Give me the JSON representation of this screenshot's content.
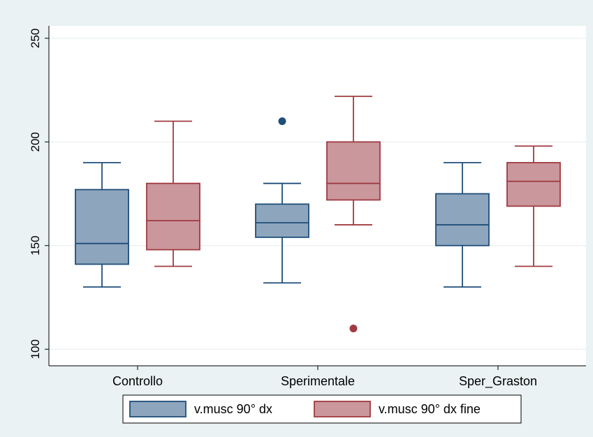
{
  "chart_data": {
    "type": "box",
    "categories": [
      "Controllo",
      "Sperimentale",
      "Sper_Graston"
    ],
    "y_ticks": [
      100,
      150,
      200,
      250
    ],
    "ylim": [
      92,
      256
    ],
    "grid": true,
    "legend_position": "bottom",
    "series": [
      {
        "name": "v.musc 90° dx",
        "color": "#8da5bd",
        "stroke": "#1f4e79",
        "boxes": [
          {
            "min": 130,
            "q1": 141,
            "median": 151,
            "q3": 177,
            "max": 190,
            "outliers": []
          },
          {
            "min": 132,
            "q1": 154,
            "median": 161,
            "q3": 170,
            "max": 180,
            "outliers": [
              210
            ]
          },
          {
            "min": 130,
            "q1": 150,
            "median": 160,
            "q3": 175,
            "max": 190,
            "outliers": []
          }
        ]
      },
      {
        "name": "v.musc 90° dx fine",
        "color": "#c9979c",
        "stroke": "#a03a42",
        "boxes": [
          {
            "min": 140,
            "q1": 148,
            "median": 162,
            "q3": 180,
            "max": 210,
            "outliers": []
          },
          {
            "min": 160,
            "q1": 172,
            "median": 180,
            "q3": 200,
            "max": 222,
            "outliers": [
              110
            ]
          },
          {
            "min": 140,
            "q1": 169,
            "median": 181,
            "q3": 190,
            "max": 198,
            "outliers": []
          }
        ]
      }
    ],
    "colors": {
      "frame_bg": "#eaf2f3",
      "plot_bg": "#ffffff",
      "grid": "#e8eef0",
      "axis": "#000000"
    }
  }
}
